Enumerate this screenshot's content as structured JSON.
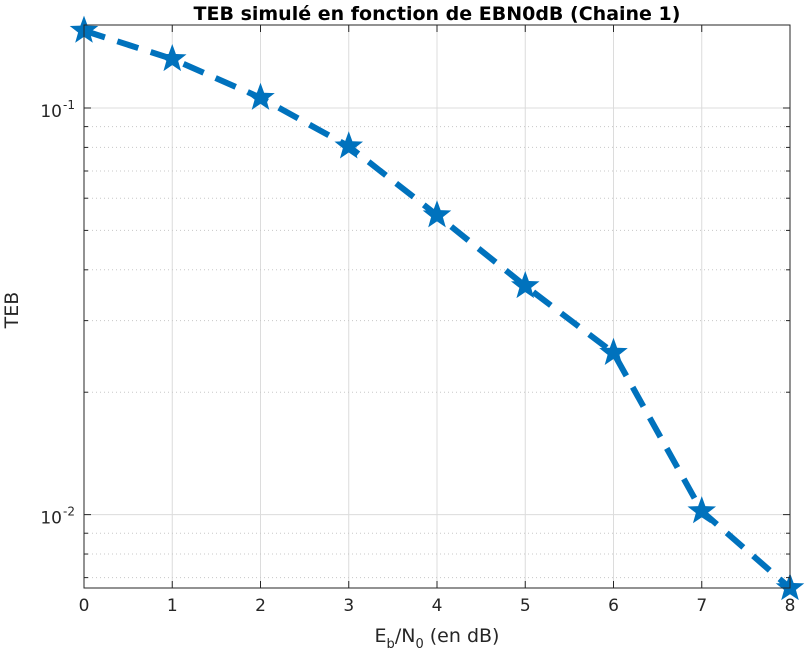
{
  "chart_data": {
    "type": "line",
    "title": "TEB simulé en fonction de EBN0dB (Chaine 1)",
    "xlabel": {
      "base": "E",
      "sub1": "b",
      "mid": "/N",
      "sub2": "0",
      "rest": " (en dB)"
    },
    "ylabel": "TEB",
    "xlim": [
      0,
      8
    ],
    "ylim": [
      0.0066,
      0.16
    ],
    "y_scale": "log",
    "grid": true,
    "x_ticks": [
      0,
      1,
      2,
      3,
      4,
      5,
      6,
      7,
      8
    ],
    "y_ticks": [
      {
        "value": 0.1,
        "base": "10",
        "exp": "-1"
      },
      {
        "value": 0.01,
        "base": "10",
        "exp": "-2"
      }
    ],
    "series": [
      {
        "color": "#0072BD",
        "line_style": "dashed",
        "marker": "star",
        "x": [
          0,
          1,
          2,
          3,
          4,
          5,
          6,
          7,
          8
        ],
        "y": [
          0.155,
          0.132,
          0.106,
          0.0805,
          0.0545,
          0.0365,
          0.025,
          0.0102,
          0.0066
        ]
      }
    ]
  }
}
